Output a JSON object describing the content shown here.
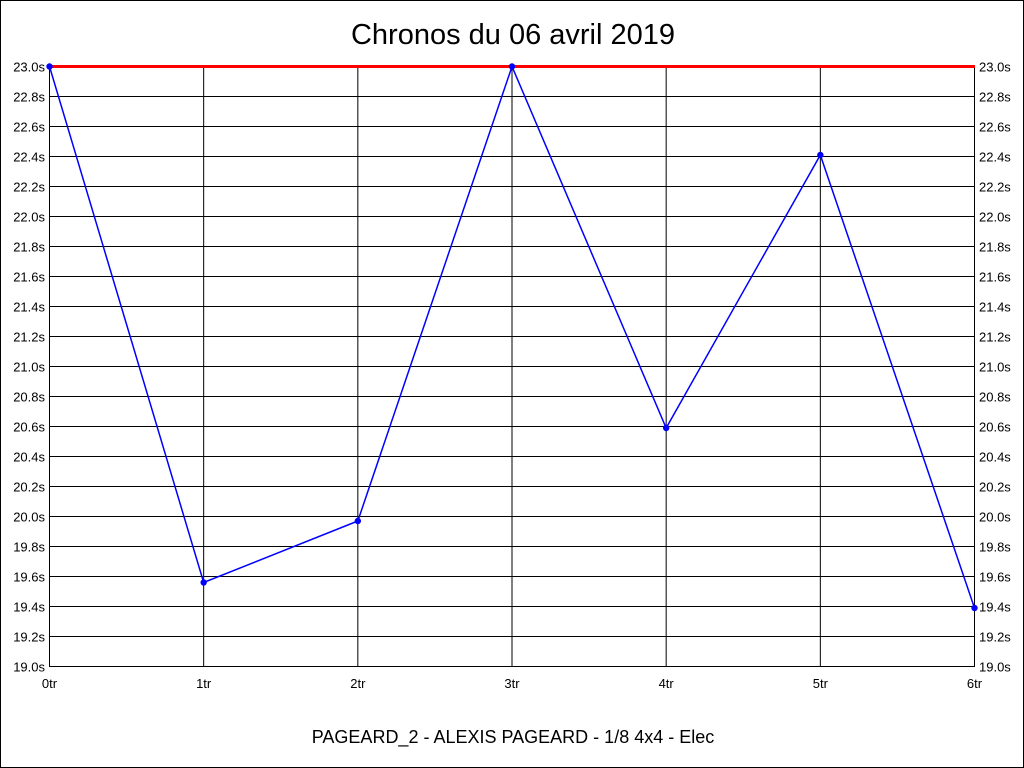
{
  "chart_data": {
    "type": "line",
    "title": "Chronos du 06 avril 2019",
    "xlabel": "PAGEARD_2 - ALEXIS PAGEARD - 1/8 4x4 - Elec",
    "ylabel": "",
    "categories": [
      "0tr",
      "1tr",
      "2tr",
      "3tr",
      "4tr",
      "5tr",
      "6tr"
    ],
    "series": [
      {
        "values": [
          23.0,
          19.56,
          19.97,
          23.0,
          20.59,
          22.41,
          19.39
        ],
        "color": "#0000ff"
      }
    ],
    "reference_line": {
      "value": 23.0,
      "color": "#ff0000"
    },
    "ylim": [
      19.0,
      23.0
    ],
    "ytick_step": 0.2,
    "ytick_suffix": "s",
    "yaxis_both_sides": true,
    "grid": true
  }
}
